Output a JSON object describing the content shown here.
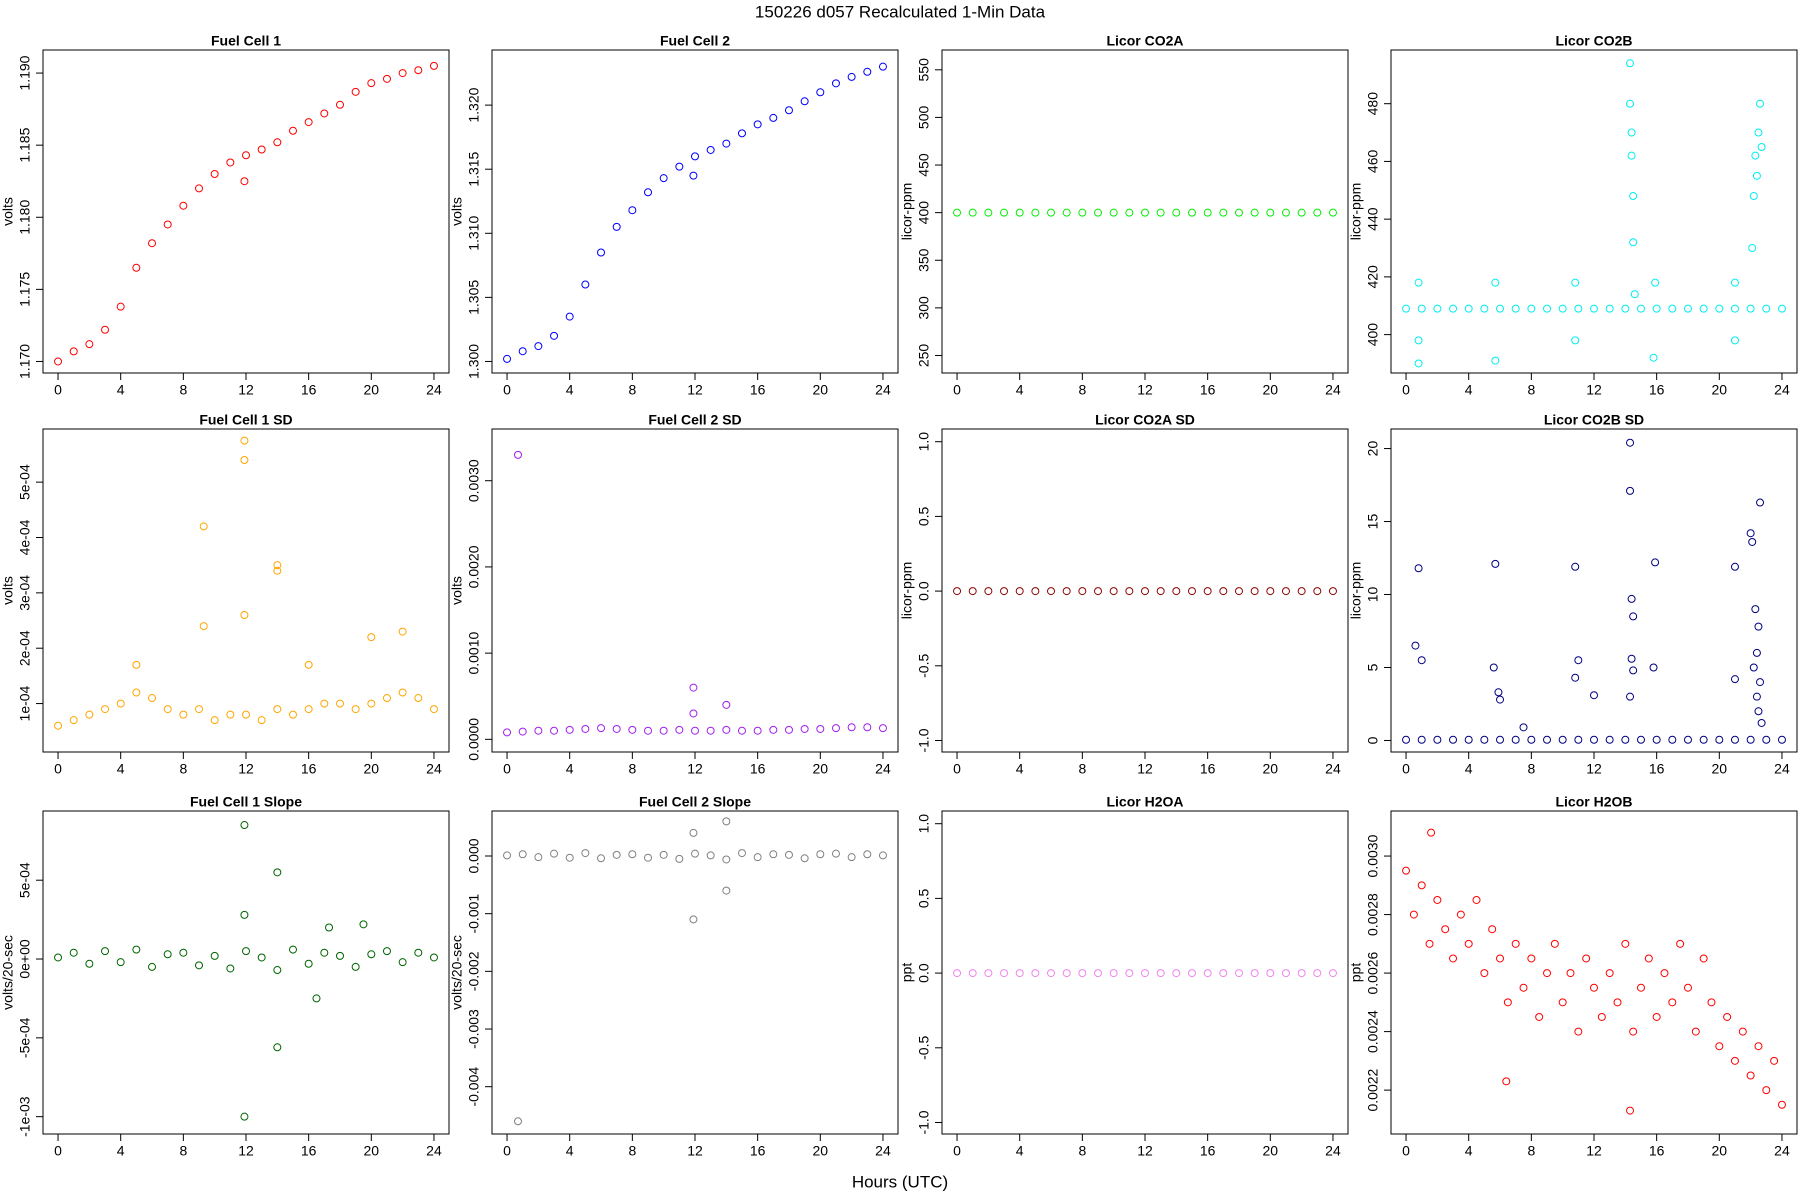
{
  "title": "150226   d057   Recalculated 1-Min Data",
  "xlabel": "Hours (UTC)",
  "chart_data": [
    {
      "type": "scatter",
      "title": "Fuel Cell 1",
      "ylabel": "volts",
      "color": "#ff0000",
      "x": [
        0,
        1,
        2,
        3,
        4,
        5,
        6,
        7,
        8,
        9,
        10,
        11,
        12,
        13,
        14,
        15,
        16,
        17,
        18,
        19,
        20,
        21,
        22,
        23,
        24,
        11.9
      ],
      "values": [
        1.17,
        1.1707,
        1.1712,
        1.1722,
        1.1738,
        1.1765,
        1.1782,
        1.1795,
        1.1808,
        1.182,
        1.183,
        1.1838,
        1.1843,
        1.1847,
        1.1852,
        1.186,
        1.1866,
        1.1872,
        1.1878,
        1.1887,
        1.1893,
        1.1896,
        1.19,
        1.1902,
        1.1905,
        1.1825
      ],
      "xlim": [
        -0.96,
        24.96
      ],
      "ylim": [
        1.1692,
        1.1916
      ],
      "xticks": [
        0,
        4,
        8,
        12,
        16,
        20,
        24
      ],
      "yticks": [
        {
          "value": 1.17,
          "label": "1.170"
        },
        1.175,
        {
          "value": 1.18,
          "label": "1.180"
        },
        1.185,
        {
          "value": 1.19,
          "label": "1.190"
        }
      ]
    },
    {
      "type": "scatter",
      "title": "Fuel Cell 2",
      "ylabel": "volts",
      "color": "#0000ff",
      "x": [
        0,
        1,
        2,
        3,
        4,
        5,
        6,
        7,
        8,
        9,
        10,
        11,
        12,
        13,
        14,
        15,
        16,
        17,
        18,
        19,
        20,
        21,
        22,
        23,
        24,
        11.9
      ],
      "values": [
        1.3002,
        1.3008,
        1.3012,
        1.302,
        1.3035,
        1.306,
        1.3085,
        1.3105,
        1.3118,
        1.3132,
        1.3143,
        1.3152,
        1.316,
        1.3165,
        1.317,
        1.3178,
        1.3185,
        1.319,
        1.3196,
        1.3203,
        1.321,
        1.3217,
        1.3222,
        1.3226,
        1.323,
        1.3145
      ],
      "xlim": [
        -0.96,
        24.96
      ],
      "ylim": [
        1.2991,
        1.3243
      ],
      "xticks": [
        0,
        4,
        8,
        12,
        16,
        20,
        24
      ],
      "yticks": [
        {
          "value": 1.3,
          "label": "1.300"
        },
        1.305,
        {
          "value": 1.31,
          "label": "1.310"
        },
        1.315,
        {
          "value": 1.32,
          "label": "1.320"
        }
      ]
    },
    {
      "type": "scatter",
      "title": "Licor CO2A",
      "ylabel": "licor-ppm",
      "color": "#00ee00",
      "x": [
        0,
        1,
        2,
        3,
        4,
        5,
        6,
        7,
        8,
        9,
        10,
        11,
        12,
        13,
        14,
        15,
        16,
        17,
        18,
        19,
        20,
        21,
        22,
        23,
        24
      ],
      "values": [
        400,
        400,
        400,
        400,
        400,
        400,
        400,
        400,
        400,
        400,
        400,
        400,
        400,
        400,
        400,
        400,
        400,
        400,
        400,
        400,
        400,
        400,
        400,
        400,
        400
      ],
      "xlim": [
        -0.96,
        24.96
      ],
      "ylim": [
        231.6,
        570.8
      ],
      "xticks": [
        0,
        4,
        8,
        12,
        16,
        20,
        24
      ],
      "yticks": [
        250,
        300,
        350,
        400,
        450,
        500,
        550
      ]
    },
    {
      "type": "scatter",
      "title": "Licor CO2B",
      "ylabel": "licor-ppm",
      "color": "#00eeee",
      "x": [
        0,
        1,
        2,
        3,
        4,
        5,
        6,
        7,
        8,
        9,
        10,
        11,
        12,
        13,
        14,
        15,
        16,
        17,
        18,
        19,
        20,
        21,
        22,
        23,
        24,
        0.8,
        0.8,
        0.8,
        5.7,
        5.7,
        10.8,
        10.8,
        14.3,
        14.3,
        14.4,
        14.4,
        14.5,
        14.5,
        14.6,
        15.9,
        15.8,
        21.0,
        21.0,
        22.1,
        22.2,
        22.3,
        22.5,
        22.6,
        22.7,
        22.4
      ],
      "values": [
        409,
        409,
        409,
        409,
        409,
        409,
        409,
        409,
        409,
        409,
        409,
        409,
        409,
        409,
        409,
        409,
        409,
        409,
        409,
        409,
        409,
        409,
        409,
        409,
        409,
        418,
        398,
        390,
        418,
        391,
        418,
        398,
        494,
        480,
        470,
        462,
        448,
        432,
        414,
        418,
        392,
        418,
        398,
        430,
        448,
        462,
        470,
        480,
        465,
        455
      ],
      "xlim": [
        -0.96,
        24.96
      ],
      "ylim": [
        386.7,
        498.6
      ],
      "xticks": [
        0,
        4,
        8,
        12,
        16,
        20,
        24
      ],
      "yticks": [
        400,
        420,
        440,
        460,
        480
      ]
    },
    {
      "type": "scatter",
      "title": "Fuel Cell 1 SD",
      "ylabel": "volts",
      "color": "#ffa500",
      "x": [
        0,
        1,
        2,
        3,
        4,
        5,
        6,
        7,
        8,
        9,
        10,
        11,
        12,
        13,
        14,
        15,
        16,
        17,
        18,
        19,
        20,
        21,
        22,
        23,
        24,
        11.9,
        11.9,
        9.3,
        14.0,
        14.0,
        9.3,
        11.9,
        20.0,
        22.0,
        16.0,
        5.0
      ],
      "values": [
        6e-05,
        7e-05,
        8e-05,
        9e-05,
        0.0001,
        0.00012,
        0.00011,
        9e-05,
        8e-05,
        9e-05,
        7e-05,
        8e-05,
        8e-05,
        7e-05,
        9e-05,
        8e-05,
        9e-05,
        0.0001,
        0.0001,
        9e-05,
        0.0001,
        0.00011,
        0.00012,
        0.00011,
        9e-05,
        0.000575,
        0.00054,
        0.00042,
        0.00035,
        0.00034,
        0.00024,
        0.00026,
        0.00022,
        0.00023,
        0.00017,
        0.00017
      ],
      "xlim": [
        -0.96,
        24.96
      ],
      "ylim": [
        1.25e-05,
        0.000596
      ],
      "xticks": [
        0,
        4,
        8,
        12,
        16,
        20,
        24
      ],
      "yticks": [
        {
          "value": 0.0001,
          "label": "1e-04"
        },
        {
          "value": 0.0002,
          "label": "2e-04"
        },
        {
          "value": 0.0003,
          "label": "3e-04"
        },
        {
          "value": 0.0004,
          "label": "4e-04"
        },
        {
          "value": 0.0005,
          "label": "5e-04"
        }
      ]
    },
    {
      "type": "scatter",
      "title": "Fuel Cell 2 SD",
      "ylabel": "volts",
      "color": "#a020f0",
      "x": [
        0,
        1,
        2,
        3,
        4,
        5,
        6,
        7,
        8,
        9,
        10,
        11,
        12,
        13,
        14,
        15,
        16,
        17,
        18,
        19,
        20,
        21,
        22,
        23,
        24,
        0.7,
        11.9,
        11.9,
        14.0
      ],
      "values": [
        8e-05,
        9e-05,
        0.0001,
        0.0001,
        0.00011,
        0.00012,
        0.00013,
        0.00012,
        0.00011,
        0.0001,
        0.0001,
        0.00011,
        0.0001,
        0.0001,
        0.00011,
        0.0001,
        0.0001,
        0.00011,
        0.00011,
        0.00012,
        0.00012,
        0.00013,
        0.00014,
        0.00014,
        0.00013,
        0.0033,
        0.0006,
        0.0003,
        0.0004
      ],
      "xlim": [
        -0.96,
        24.96
      ],
      "ylim": [
        -0.000147,
        0.0036
      ],
      "xticks": [
        0,
        4,
        8,
        12,
        16,
        20,
        24
      ],
      "yticks": [
        {
          "value": 0,
          "label": "0.0000"
        },
        {
          "value": 0.001,
          "label": "0.0010"
        },
        {
          "value": 0.002,
          "label": "0.0020"
        },
        {
          "value": 0.003,
          "label": "0.0030"
        }
      ]
    },
    {
      "type": "scatter",
      "title": "Licor CO2A SD",
      "ylabel": "licor-ppm",
      "color": "#8b0000",
      "x": [
        0,
        1,
        2,
        3,
        4,
        5,
        6,
        7,
        8,
        9,
        10,
        11,
        12,
        13,
        14,
        15,
        16,
        17,
        18,
        19,
        20,
        21,
        22,
        23,
        24
      ],
      "values": [
        0,
        0,
        0,
        0,
        0,
        0,
        0,
        0,
        0,
        0,
        0,
        0,
        0,
        0,
        0,
        0,
        0,
        0,
        0,
        0,
        0,
        0,
        0,
        0,
        0
      ],
      "xlim": [
        -0.96,
        24.96
      ],
      "ylim": [
        -1.077,
        1.085
      ],
      "xticks": [
        0,
        4,
        8,
        12,
        16,
        20,
        24
      ],
      "yticks": [
        {
          "value": -1,
          "label": "-1.0"
        },
        -0.5,
        {
          "value": 0,
          "label": "0.0"
        },
        0.5,
        {
          "value": 1,
          "label": "1.0"
        }
      ]
    },
    {
      "type": "scatter",
      "title": "Licor CO2B SD",
      "ylabel": "licor-ppm",
      "color": "#000080",
      "x": [
        0,
        1,
        2,
        3,
        4,
        5,
        6,
        7,
        8,
        9,
        10,
        11,
        12,
        13,
        14,
        15,
        16,
        17,
        18,
        19,
        20,
        21,
        22,
        23,
        24,
        0.8,
        0.6,
        1.0,
        5.7,
        5.6,
        5.9,
        6.0,
        7.5,
        10.8,
        11.0,
        10.8,
        12.0,
        14.3,
        14.3,
        14.4,
        14.5,
        14.4,
        14.5,
        14.3,
        15.9,
        15.8,
        21.0,
        21.0,
        22.0,
        22.1,
        22.6,
        22.3,
        22.5,
        22.4,
        22.2,
        22.6,
        22.4,
        22.5,
        22.7
      ],
      "values": [
        0.05,
        0.05,
        0.05,
        0.05,
        0.05,
        0.05,
        0.05,
        0.05,
        0.05,
        0.05,
        0.05,
        0.05,
        0.05,
        0.05,
        0.05,
        0.05,
        0.05,
        0.05,
        0.05,
        0.05,
        0.05,
        0.05,
        0.05,
        0.05,
        0.05,
        11.8,
        6.5,
        5.5,
        12.1,
        5,
        3.3,
        2.8,
        0.9,
        11.9,
        5.5,
        4.3,
        3.1,
        20.4,
        17.1,
        9.7,
        8.5,
        5.6,
        4.8,
        3.0,
        12.2,
        5.0,
        11.9,
        4.2,
        14.2,
        13.6,
        16.3,
        9.0,
        7.8,
        6.0,
        5.0,
        4.0,
        3.0,
        2.0,
        1.2
      ],
      "xlim": [
        -0.96,
        24.96
      ],
      "ylim": [
        -0.79,
        21.34
      ],
      "xticks": [
        0,
        4,
        8,
        12,
        16,
        20,
        24
      ],
      "yticks": [
        0,
        5,
        10,
        15,
        20
      ]
    },
    {
      "type": "scatter",
      "title": "Fuel Cell 1 Slope",
      "ylabel": "volts/20-sec",
      "color": "#006400",
      "x": [
        0,
        1,
        2,
        3,
        4,
        5,
        6,
        7,
        8,
        9,
        10,
        11,
        12,
        13,
        14,
        15,
        16,
        17,
        18,
        19,
        20,
        21,
        22,
        23,
        24,
        11.9,
        11.9,
        11.9,
        14.0,
        14.0,
        16.5,
        17.3,
        19.5
      ],
      "values": [
        1e-05,
        4e-05,
        -3e-05,
        5e-05,
        -2e-05,
        6e-05,
        -5e-05,
        3e-05,
        4e-05,
        -4e-05,
        2e-05,
        -6e-05,
        5e-05,
        1e-05,
        -7e-05,
        6e-05,
        -3e-05,
        4e-05,
        2e-05,
        -5e-05,
        3e-05,
        5e-05,
        -2e-05,
        4e-05,
        1e-05,
        0.00085,
        0.00028,
        -0.001,
        0.00055,
        -0.00056,
        -0.00025,
        0.0002,
        0.00022
      ],
      "xlim": [
        -0.96,
        24.96
      ],
      "ylim": [
        -0.00111,
        0.000939
      ],
      "xticks": [
        0,
        4,
        8,
        12,
        16,
        20,
        24
      ],
      "yticks": [
        {
          "value": -0.001,
          "label": "-1e-03"
        },
        {
          "value": -0.0005,
          "label": "-5e-04"
        },
        {
          "value": 0,
          "label": "0e+00"
        },
        {
          "value": 0.0005,
          "label": "5e-04"
        }
      ]
    },
    {
      "type": "scatter",
      "title": "Fuel Cell 2 Slope",
      "ylabel": "volts/20-sec",
      "color": "#808080",
      "x": [
        0,
        1,
        2,
        3,
        4,
        5,
        6,
        7,
        8,
        9,
        10,
        11,
        12,
        13,
        14,
        15,
        16,
        17,
        18,
        19,
        20,
        21,
        22,
        23,
        24,
        0.7,
        11.9,
        11.9,
        14.0,
        14.0
      ],
      "values": [
        1e-05,
        3e-05,
        -2e-05,
        4e-05,
        -3e-05,
        5e-05,
        -4e-05,
        2e-05,
        3e-05,
        -3e-05,
        2e-05,
        -5e-05,
        4e-05,
        1e-05,
        -6e-05,
        5e-05,
        -2e-05,
        3e-05,
        2e-05,
        -4e-05,
        3e-05,
        4e-05,
        -2e-05,
        3e-05,
        1e-05,
        -0.0046,
        -0.0011,
        0.0004,
        0.0006,
        -0.0006
      ],
      "xlim": [
        -0.96,
        24.96
      ],
      "ylim": [
        -0.00482,
        0.00078
      ],
      "xticks": [
        0,
        4,
        8,
        12,
        16,
        20,
        24
      ],
      "yticks": [
        -0.004,
        -0.003,
        -0.002,
        -0.001,
        {
          "value": 0,
          "label": "0.000"
        }
      ]
    },
    {
      "type": "scatter",
      "title": "Licor H2OA",
      "ylabel": "ppt",
      "color": "#ee82ee",
      "x": [
        0,
        1,
        2,
        3,
        4,
        5,
        6,
        7,
        8,
        9,
        10,
        11,
        12,
        13,
        14,
        15,
        16,
        17,
        18,
        19,
        20,
        21,
        22,
        23,
        24
      ],
      "values": [
        0,
        0,
        0,
        0,
        0,
        0,
        0,
        0,
        0,
        0,
        0,
        0,
        0,
        0,
        0,
        0,
        0,
        0,
        0,
        0,
        0,
        0,
        0,
        0,
        0
      ],
      "xlim": [
        -0.96,
        24.96
      ],
      "ylim": [
        -1.077,
        1.085
      ],
      "xticks": [
        0,
        4,
        8,
        12,
        16,
        20,
        24
      ],
      "yticks": [
        {
          "value": -1,
          "label": "-1.0"
        },
        -0.5,
        {
          "value": 0,
          "label": "0.0"
        },
        0.5,
        {
          "value": 1,
          "label": "1.0"
        }
      ]
    },
    {
      "type": "scatter",
      "title": "Licor H2OB",
      "ylabel": "ppt",
      "color": "#ff0000",
      "x": [
        0,
        0.5,
        1,
        1.5,
        2,
        2.5,
        3,
        3.5,
        4,
        4.5,
        5,
        5.5,
        6,
        6.5,
        7,
        7.5,
        8,
        8.5,
        9,
        9.5,
        10,
        10.5,
        11,
        11.5,
        12,
        12.5,
        13,
        13.5,
        14,
        14.5,
        15,
        15.5,
        16,
        16.5,
        17,
        17.5,
        18,
        18.5,
        19,
        19.5,
        20,
        20.5,
        21,
        21.5,
        22,
        22.5,
        23,
        23.5,
        24,
        1.6,
        14.3,
        6.4
      ],
      "values": [
        0.00295,
        0.0028,
        0.0029,
        0.0027,
        0.00285,
        0.00275,
        0.00265,
        0.0028,
        0.0027,
        0.00285,
        0.0026,
        0.00275,
        0.00265,
        0.0025,
        0.0027,
        0.00255,
        0.00265,
        0.00245,
        0.0026,
        0.0027,
        0.0025,
        0.0026,
        0.0024,
        0.00265,
        0.00255,
        0.00245,
        0.0026,
        0.0025,
        0.0027,
        0.0024,
        0.00255,
        0.00265,
        0.00245,
        0.0026,
        0.0025,
        0.0027,
        0.00255,
        0.0024,
        0.00265,
        0.0025,
        0.00235,
        0.00245,
        0.0023,
        0.0024,
        0.00225,
        0.00235,
        0.0022,
        0.0023,
        0.00215,
        0.00308,
        0.00213,
        0.00223
      ],
      "xlim": [
        -0.96,
        24.96
      ],
      "ylim": [
        0.00205,
        0.003154
      ],
      "xticks": [
        0,
        4,
        8,
        12,
        16,
        20,
        24
      ],
      "yticks": [
        0.0022,
        0.0024,
        0.0026,
        0.0028,
        {
          "value": 0.003,
          "label": "0.0030"
        }
      ]
    }
  ]
}
